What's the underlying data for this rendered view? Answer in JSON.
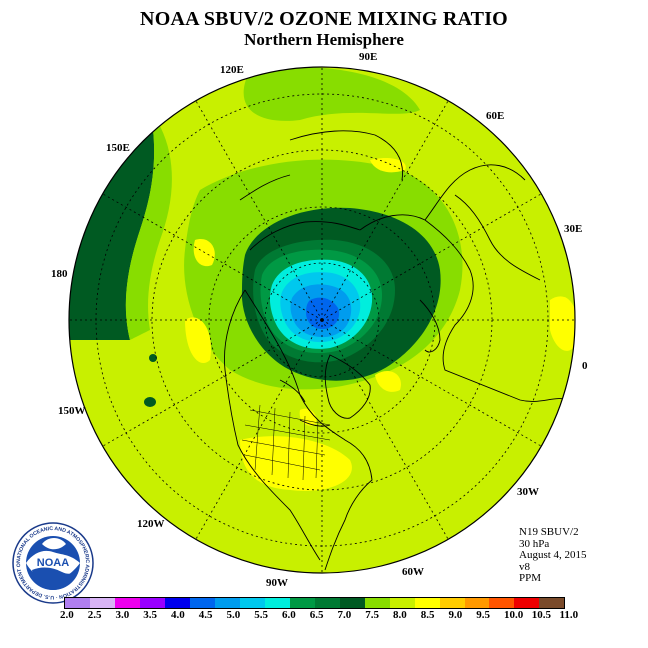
{
  "title": "NOAA SBUV/2 OZONE MIXING RATIO",
  "subtitle": "Northern Hemisphere",
  "longitude_labels": {
    "e90": "90E",
    "e60": "60E",
    "e30": "30E",
    "zero": "0",
    "w30": "30W",
    "w60": "60W",
    "w90": "90W",
    "w120": "120W",
    "w150": "150W",
    "d180": "180",
    "e150": "150E",
    "e120": "120E"
  },
  "info": {
    "satellite": "N19 SBUV/2",
    "level": "30 hPa",
    "date": "August 4, 2015",
    "version": "v8",
    "units": "PPM"
  },
  "logo": {
    "text": "NOAA",
    "ring_text": "NATIONAL OCEANIC AND ATMOSPHERIC ADMINISTRATION · U.S. DEPARTMENT OF COMMERCE"
  },
  "colorbar": {
    "labels": [
      "2.0",
      "2.5",
      "3.0",
      "3.5",
      "4.0",
      "4.5",
      "5.0",
      "5.5",
      "6.0",
      "6.5",
      "7.0",
      "7.5",
      "8.0",
      "8.5",
      "9.0",
      "9.5",
      "10.0",
      "10.5",
      "11.0"
    ],
    "colors": [
      "#b07ff0",
      "#d8b4f5",
      "#ee00ee",
      "#9900ff",
      "#0000ee",
      "#0066ee",
      "#009cee",
      "#00c8ee",
      "#00eedd",
      "#009944",
      "#007a33",
      "#005a22",
      "#88dd00",
      "#c8f000",
      "#ffff00",
      "#ffcc00",
      "#ff9900",
      "#ff5500",
      "#ee0000",
      "#7a4a2a"
    ]
  }
}
